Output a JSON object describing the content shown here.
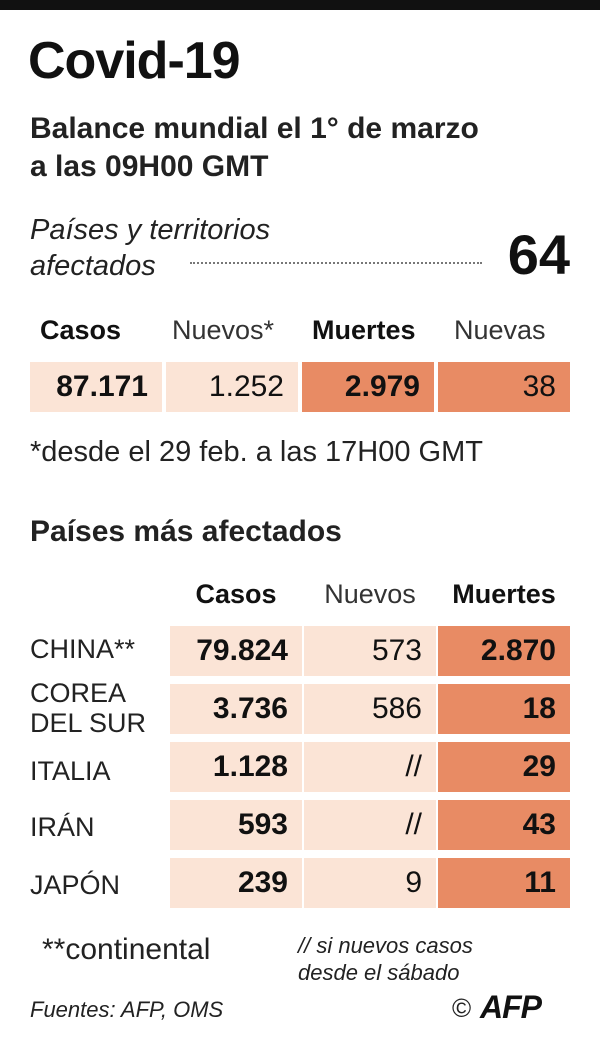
{
  "title": "Covid-19",
  "subtitle_line1": "Balance mundial el 1° de marzo",
  "subtitle_line2": "a las 09H00 GMT",
  "affected": {
    "label_line1": "Países y territorios",
    "label_line2": "afectados",
    "count": "64"
  },
  "summary": {
    "headers": [
      "Casos",
      "Nuevos*",
      "Muertes",
      "Nuevas"
    ],
    "values": [
      "87.171",
      "1.252",
      "2.979",
      "38"
    ]
  },
  "footnote_new": "*desde el 29 feb. a las 17H00 GMT",
  "top_countries": {
    "title": "Países más afectados",
    "headers": [
      "Casos",
      "Nuevos",
      "Muertes"
    ],
    "rows": [
      {
        "country_line1": "CHINA**",
        "country_line2": "",
        "cases": "79.824",
        "new": "573",
        "deaths": "2.870"
      },
      {
        "country_line1": "COREA",
        "country_line2": "DEL SUR",
        "cases": "3.736",
        "new": "586",
        "deaths": "18"
      },
      {
        "country_line1": "ITALIA",
        "country_line2": "",
        "cases": "1.128",
        "new": "//",
        "deaths": "29"
      },
      {
        "country_line1": "IRÁN",
        "country_line2": "",
        "cases": "593",
        "new": "//",
        "deaths": "43"
      },
      {
        "country_line1": "JAPÓN",
        "country_line2": "",
        "cases": "239",
        "new": "9",
        "deaths": "11"
      }
    ]
  },
  "note_continental": "**continental",
  "note_new_line1": "// si nuevos casos",
  "note_new_line2": "desde el sábado",
  "sources": "Fuentes: AFP, OMS",
  "copyright": "©",
  "logo_text": "AFP",
  "colors": {
    "light_cell": "#fbe4d6",
    "dark_cell": "#e88b64"
  }
}
